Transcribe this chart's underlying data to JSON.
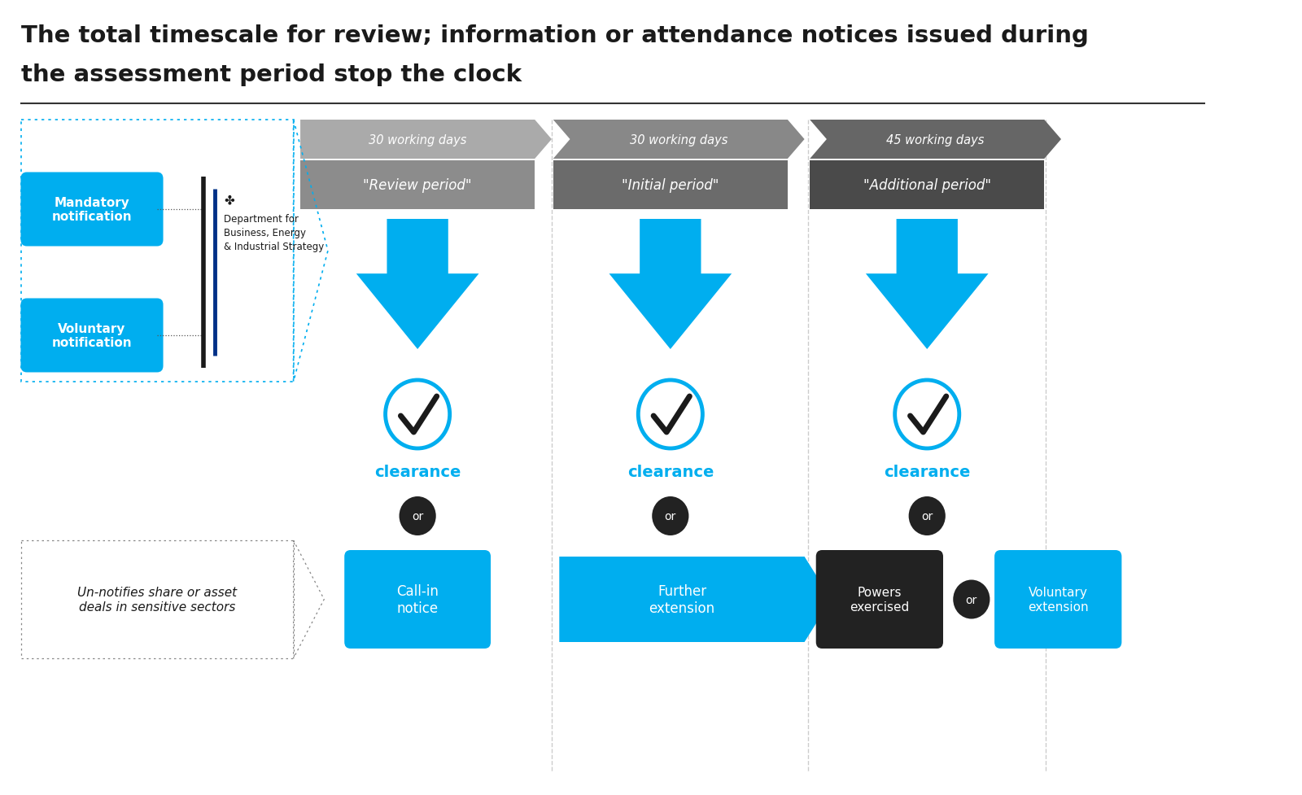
{
  "title_line1": "The total timescale for review; information or attendance notices issued during",
  "title_line2": "the assessment period stop the clock",
  "bg_color": "#ffffff",
  "cyan": "#00AEEF",
  "black": "#1a1a1a",
  "period_labels": [
    "30 working days",
    "30 working days",
    "45 working days"
  ],
  "period_headers": [
    "\"Review period\"",
    "\"Initial period\"",
    "\"Additional period\""
  ],
  "period_header_colors": [
    "#8C8C8C",
    "#6B6B6B",
    "#4A4A4A"
  ],
  "arrow_band_colors": [
    "#AAAAAA",
    "#888888",
    "#666666"
  ],
  "clearance_label": "clearance",
  "or_label": "or",
  "mandatory_label": "Mandatory\nnotification",
  "voluntary_label": "Voluntary\nnotification",
  "call_in_label": "Call-in\nnotice",
  "further_ext_label": "Further\nextension",
  "powers_label": "Powers\nexercised",
  "vol_ext_label": "Voluntary\nextension",
  "unnotifies_label": "Un-notifies share or asset\ndeals in sensitive sectors",
  "beis_label": "Department for\nBusiness, Energy\n& Industrial Strategy"
}
